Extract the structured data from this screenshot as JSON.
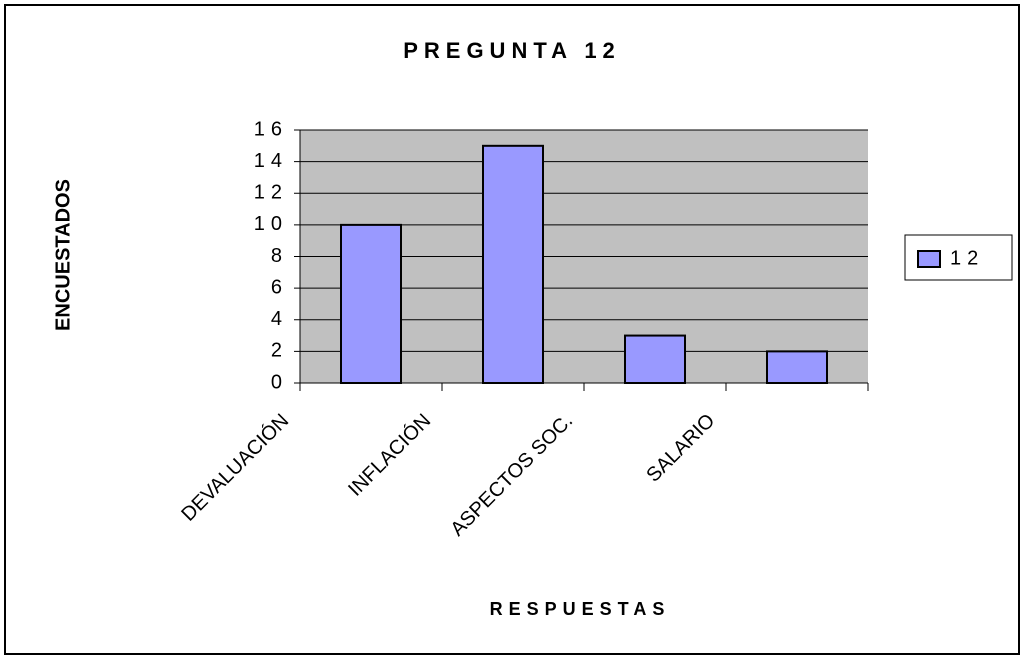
{
  "chart_data": {
    "type": "bar",
    "title": "PREGUNTA 12",
    "x_label": "RESPUESTAS",
    "y_label": "ENCUESTADOS",
    "categories": [
      "DEVALUACIÓN",
      "INFLACIÓN",
      "ASPECTOS SOC.",
      "SALARIO"
    ],
    "series": [
      {
        "name": "12",
        "color": "#9999ff",
        "values": [
          10,
          15,
          3,
          2
        ]
      }
    ],
    "ylim": [
      0,
      16
    ],
    "yticks": [
      0,
      2,
      4,
      6,
      8,
      10,
      12,
      14,
      16
    ],
    "grid": true,
    "legend": "right"
  }
}
